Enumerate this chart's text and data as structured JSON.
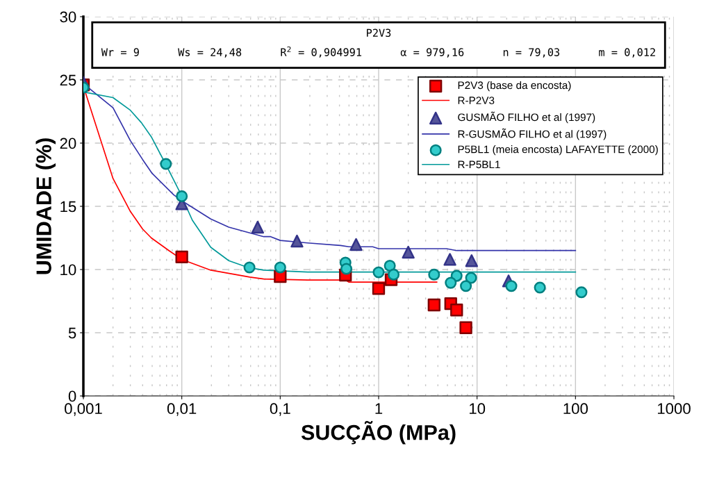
{
  "chart_data": {
    "type": "scatter",
    "title": "P2V3",
    "subtitle": "Wr = 9      Ws = 24,48      R$^{2}$ = 0,904991      α = 979,16      n = 79,03      m = 0,012",
    "xlabel": "SUCÇÃO (MPa)",
    "ylabel": "UMIDADE (%)",
    "log": "x",
    "grid": true,
    "legend": "top right",
    "xlim": [
      0.001,
      1000
    ],
    "xticks": [
      {
        "value": 0.001,
        "label": "0,001"
      },
      {
        "value": 0.01,
        "label": "0,01"
      },
      {
        "value": 0.1,
        "label": "0,1"
      },
      {
        "value": 1,
        "label": "1"
      },
      {
        "value": 10,
        "label": "10"
      },
      {
        "value": 100,
        "label": "100"
      },
      {
        "value": 1000,
        "label": "1000"
      }
    ],
    "ylim": [
      0,
      30
    ],
    "yticks": [
      0,
      5,
      10,
      15,
      20,
      25,
      30
    ],
    "series": [
      {
        "name": "P2V3 (base da encosta)",
        "marker": "square",
        "color": "#ff0000",
        "x": [
          0.001,
          0.01,
          0.1,
          0.46,
          1.0,
          1.34,
          3.66,
          5.4,
          6.2,
          7.7
        ],
        "values": [
          24.6,
          11.0,
          9.45,
          9.56,
          8.5,
          9.2,
          7.2,
          7.3,
          6.8,
          5.4
        ]
      },
      {
        "name": "R-P2V3",
        "type": "line",
        "marker": "none",
        "color": "#ff0000",
        "x": [
          0.001,
          0.002,
          0.003,
          0.004,
          0.0049,
          0.0074,
          0.01,
          0.0197,
          0.049,
          0.068,
          0.19,
          0.46,
          0.5,
          3.9
        ],
        "values": [
          24.5,
          17.2,
          14.6,
          13.2,
          12.5,
          11.5,
          10.8,
          9.95,
          9.4,
          9.25,
          9.17,
          9.17,
          9.0,
          9.0
        ]
      },
      {
        "name": "GUSMÃO FILHO et al (1997)",
        "marker": "triangle",
        "color": "#55559a",
        "x": [
          0.001,
          0.01,
          0.059,
          0.148,
          0.59,
          2.0,
          5.3,
          8.8,
          20.9
        ],
        "values": [
          24.8,
          15.2,
          13.35,
          12.25,
          11.98,
          11.37,
          10.8,
          10.7,
          9.1
        ]
      },
      {
        "name": "R-GUSMÃO FILHO et al (1997)",
        "type": "line",
        "marker": "none",
        "color": "#3333aa",
        "x": [
          0.001,
          0.002,
          0.003,
          0.004,
          0.005,
          0.0083,
          0.0102,
          0.0197,
          0.03,
          0.068,
          0.08,
          0.1,
          0.19,
          0.41,
          0.5,
          0.87,
          1.0,
          4.9,
          6.2,
          100
        ],
        "values": [
          24.7,
          22.8,
          20.2,
          18.7,
          17.6,
          15.9,
          15.4,
          14.0,
          13.35,
          12.6,
          12.6,
          12.3,
          12.1,
          11.9,
          11.8,
          11.8,
          11.65,
          11.65,
          11.5,
          11.5
        ]
      },
      {
        "name": "P5BL1 (meia encosta) LAFAYETTE (2000)",
        "marker": "circle",
        "color": "#33cccc",
        "x": [
          0.001,
          0.0069,
          0.01,
          0.0487,
          0.1,
          0.46,
          0.47,
          1.0,
          1.3,
          1.42,
          3.66,
          6.2,
          5.4,
          8.7,
          7.7,
          22.3,
          43.5,
          115
        ],
        "values": [
          24.4,
          18.35,
          15.8,
          10.16,
          10.16,
          10.55,
          10.05,
          9.78,
          10.3,
          9.6,
          9.6,
          9.5,
          8.95,
          9.34,
          8.7,
          8.7,
          8.57,
          8.2
        ]
      },
      {
        "name": "R-P5BL1",
        "type": "line",
        "marker": "none",
        "color": "#009999",
        "x": [
          0.001,
          0.002,
          0.003,
          0.0039,
          0.0049,
          0.007,
          0.0093,
          0.0128,
          0.0197,
          0.03,
          0.047,
          0.068,
          0.19,
          100
        ],
        "values": [
          24.05,
          23.6,
          22.6,
          21.6,
          20.5,
          18.2,
          16.3,
          13.9,
          11.76,
          10.7,
          10.16,
          9.95,
          9.8,
          9.8
        ]
      }
    ]
  }
}
